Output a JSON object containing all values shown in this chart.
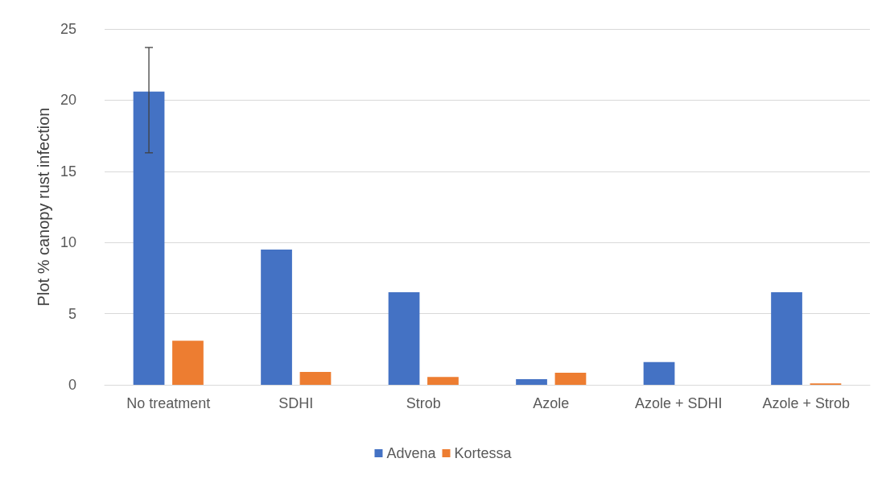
{
  "chart_data": {
    "type": "bar",
    "ylabel": "Plot % canopy rust infection",
    "categories": [
      "No treatment",
      "SDHI",
      "Strob",
      "Azole",
      "Azole + SDHI",
      "Azole + Strob"
    ],
    "series": [
      {
        "name": "Advena",
        "color": "#4472c4",
        "values": [
          20.6,
          9.5,
          6.5,
          0.4,
          1.6,
          6.5
        ],
        "errors": [
          [
            16.3,
            23.7
          ],
          null,
          null,
          null,
          null,
          null
        ]
      },
      {
        "name": "Kortessa",
        "color": "#ed7d31",
        "values": [
          3.1,
          0.9,
          0.55,
          0.85,
          0,
          0.1
        ]
      }
    ],
    "ylim": [
      0,
      25
    ],
    "yticks": [
      0,
      5,
      10,
      15,
      20,
      25
    ],
    "grid": "y",
    "legend": "bottom"
  }
}
